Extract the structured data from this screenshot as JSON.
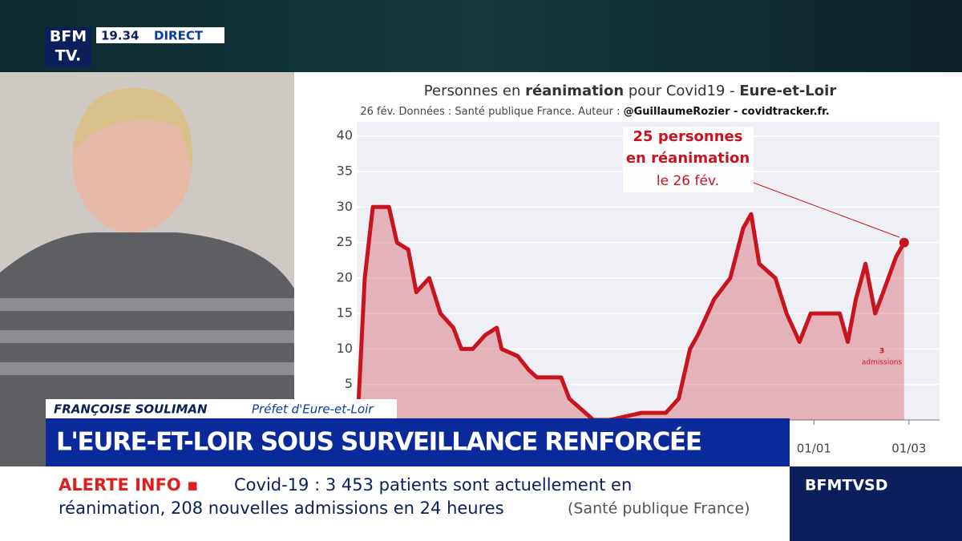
{
  "header": {
    "logo_top": "BFM",
    "logo_bottom": "TV.",
    "time": "19.34",
    "live": "DIRECT"
  },
  "chart": {
    "type": "line",
    "title": [
      "Personnes en ",
      "réanimation",
      " pour Covid19 - ",
      "Eure-et-Loir"
    ],
    "subtitle": [
      "26 fév. Données : Santé publique France. Auteur : ",
      "@GuillaumeRozier - covidtracker.fr."
    ],
    "annotation": [
      "25 personnes",
      "en réanimation",
      "le 26 fév."
    ],
    "small_annotation": [
      "3",
      "admissions"
    ],
    "x": [
      0,
      4,
      9,
      19,
      24,
      31,
      36,
      44,
      51,
      59,
      64,
      71,
      79,
      86,
      89,
      99,
      106,
      111,
      126,
      131,
      141,
      146,
      156,
      176,
      191,
      199,
      206,
      211,
      221,
      231,
      239,
      244,
      249,
      259,
      266,
      274,
      281,
      291,
      299,
      304,
      309,
      315,
      321,
      326,
      334,
      339
    ],
    "series": [
      {
        "color": "#c8141e",
        "values": [
          2,
          20,
          30,
          30,
          25,
          24,
          18,
          20,
          15,
          13,
          10,
          10,
          12,
          13,
          10,
          9,
          7,
          6,
          6,
          3,
          1,
          0,
          0,
          1,
          1,
          3,
          10,
          12,
          17,
          20,
          27,
          29,
          22,
          20,
          15,
          11,
          15,
          15,
          15,
          11,
          17,
          22,
          15,
          18,
          23,
          25
        ]
      }
    ],
    "xlim": [
      0,
      362
    ],
    "xticks": [
      {
        "value": 283,
        "label": "01/01"
      },
      {
        "value": 342,
        "label": "01/03"
      }
    ],
    "ylim": [
      0,
      42
    ],
    "yticks": [
      5,
      10,
      15,
      20,
      25,
      30,
      35,
      40
    ],
    "grid": true
  },
  "lower_third": {
    "name": "FRANÇOISE SOULIMAN",
    "role": "Préfet d'Eure-et-Loir",
    "headline": "L'EURE-ET-LOIR SOUS SURVEILLANCE RENFORCÉE"
  },
  "ticker": {
    "tag": "ALERTE INFO ▪",
    "line1": "Covid-19 : 3 453 patients sont actuellement en",
    "line2": "réanimation, 208 nouvelles admissions en 24 heures",
    "source": "(Santé publique France)"
  },
  "channel": "BFMTVSD"
}
